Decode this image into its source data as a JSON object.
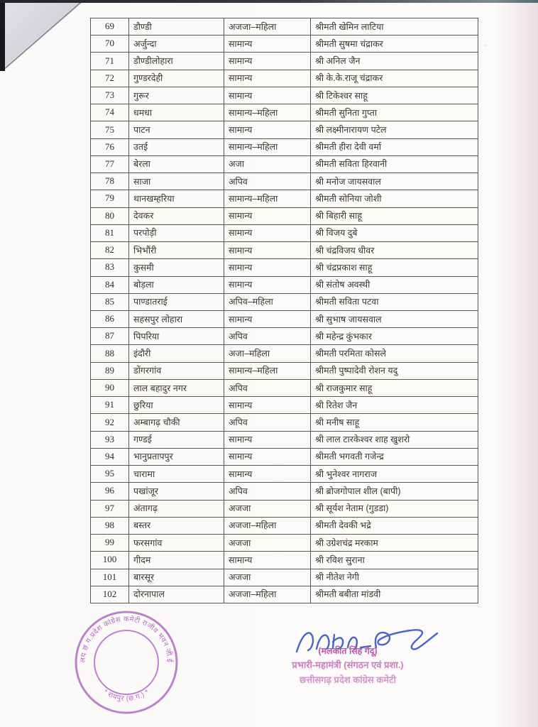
{
  "table": {
    "rows": [
      {
        "sno": "69",
        "place": "डौण्डी",
        "category": "अजजा–महिला",
        "name": "श्रीमती खेमिन लाटिया"
      },
      {
        "sno": "70",
        "place": "अर्जुन्दा",
        "category": "सामान्य",
        "name": "श्रीमती सुषमा चंद्राकर"
      },
      {
        "sno": "71",
        "place": "डौण्डीलोहारा",
        "category": "सामान्य",
        "name": "श्री अनिल जैन"
      },
      {
        "sno": "72",
        "place": "गुण्डरदेही",
        "category": "सामान्य",
        "name": "श्री के.के.राजू चंद्राकर"
      },
      {
        "sno": "73",
        "place": "गुरूर",
        "category": "सामान्य",
        "name": "श्री टिकेश्वर साहू"
      },
      {
        "sno": "74",
        "place": "धमधा",
        "category": "सामान्य–महिला",
        "name": "श्रीमती सुनिता गुप्ता"
      },
      {
        "sno": "75",
        "place": "पाटन",
        "category": "सामान्य",
        "name": "श्री लक्ष्मीनारायण पटेल"
      },
      {
        "sno": "76",
        "place": "उतई",
        "category": "सामान्य–महिला",
        "name": "श्रीमती हीरा देवी वर्मा"
      },
      {
        "sno": "77",
        "place": "बेरला",
        "category": "अजा",
        "name": "श्रीमती सविता हिरवानी"
      },
      {
        "sno": "78",
        "place": "साजा",
        "category": "अपिव",
        "name": "श्री मनोज जायसवाल"
      },
      {
        "sno": "79",
        "place": "थानखम्हरिया",
        "category": "सामान्य–महिला",
        "name": "श्रीमती सोनिया जोशी"
      },
      {
        "sno": "80",
        "place": "देवकर",
        "category": "सामान्य",
        "name": "श्री बिहारी साहू"
      },
      {
        "sno": "81",
        "place": "परपोड़ी",
        "category": "सामान्य",
        "name": "श्री विजय दुबे"
      },
      {
        "sno": "82",
        "place": "भिभौंरी",
        "category": "सामान्य",
        "name": "श्री चंद्रविजय धीवर"
      },
      {
        "sno": "83",
        "place": "कुसमी",
        "category": "सामान्य",
        "name": "श्री चंद्रप्रकाश साहू"
      },
      {
        "sno": "84",
        "place": "बोड़ला",
        "category": "सामान्य",
        "name": "श्री संतोष अवस्थी"
      },
      {
        "sno": "85",
        "place": "पाण्डातराई",
        "category": "अपिव–महिला",
        "name": "श्रीमती सविता पटवा"
      },
      {
        "sno": "86",
        "place": "सहसपुर लोहारा",
        "category": "सामान्य",
        "name": "श्री सुभाष जायसवाल"
      },
      {
        "sno": "87",
        "place": "पिपरिया",
        "category": "अपिव",
        "name": "श्री महेन्द्र कुंभकार"
      },
      {
        "sno": "88",
        "place": "इंदौरी",
        "category": "अजा–महिला",
        "name": "श्रीमती परमिता कोसले"
      },
      {
        "sno": "89",
        "place": "डोंगरगांव",
        "category": "सामान्य–महिला",
        "name": "श्रीमती पुष्पादेवी रोशन यदु"
      },
      {
        "sno": "90",
        "place": "लाल बहादुर नगर",
        "category": "अपिव",
        "name": "श्री राजकुमार साहू"
      },
      {
        "sno": "91",
        "place": "छुरिया",
        "category": "सामान्य",
        "name": "श्री रितेश जैन"
      },
      {
        "sno": "92",
        "place": "अम्बागढ़ चौकी",
        "category": "अपिव",
        "name": "श्री मनीष साहू"
      },
      {
        "sno": "93",
        "place": "गण्डई",
        "category": "सामान्य",
        "name": "श्री लाल टारकेश्वर शाह खुशरो"
      },
      {
        "sno": "94",
        "place": "भानुप्रतापपुर",
        "category": "सामान्य",
        "name": "श्रीमती भगवती गजेन्द्र"
      },
      {
        "sno": "95",
        "place": "चारामा",
        "category": "सामान्य",
        "name": "श्री भुनेश्वर नागराज"
      },
      {
        "sno": "96",
        "place": "पखांजूर",
        "category": "अपिव",
        "name": "श्री ब्रोजगोपाल शील (बापी)"
      },
      {
        "sno": "97",
        "place": "अंतागढ़",
        "category": "अजजा",
        "name": "श्री सूर्यश नेताम (गुडडा)"
      },
      {
        "sno": "98",
        "place": "बस्तर",
        "category": "अजजा–महिला",
        "name": "श्रीमती देवकी भद्रे"
      },
      {
        "sno": "99",
        "place": "फरसगांव",
        "category": "अजजा",
        "name": "श्री उग्रेशचंद्र मरकाम"
      },
      {
        "sno": "100",
        "place": "गीदम",
        "category": "सामान्य",
        "name": "श्री रविश सुराना"
      },
      {
        "sno": "101",
        "place": "बारसूर",
        "category": "अजजा",
        "name": "श्री नीतेश नेगी"
      },
      {
        "sno": "102",
        "place": "दोरनापाल",
        "category": "अजजा–महिला",
        "name": "श्रीमती बबीता मांडवी"
      }
    ]
  },
  "signature_block": {
    "signatory_name": "(मलकीत सिंह गैदू)",
    "designation": "प्रभारी-महामंत्री (संगठन एवं प्रशा.)",
    "organization": "छत्तीसगढ़ प्रदेश कांग्रेस कमेटी"
  },
  "stamp": {
    "arc_text": "कार्यालय छ.ग.प्रदेश कांग्रेस कमेटी राजीव भवन जी.ई. रोड",
    "bottom_text": "* रायपुर (छ.ग.) *"
  },
  "colors": {
    "paper": "#fbfaf8",
    "ink": "#3b3733",
    "table_border": "#5a5650",
    "signature_blue": "#3353c2",
    "stamp_magenta": "#a957c0",
    "caption_magenta": "#c05fb4"
  }
}
